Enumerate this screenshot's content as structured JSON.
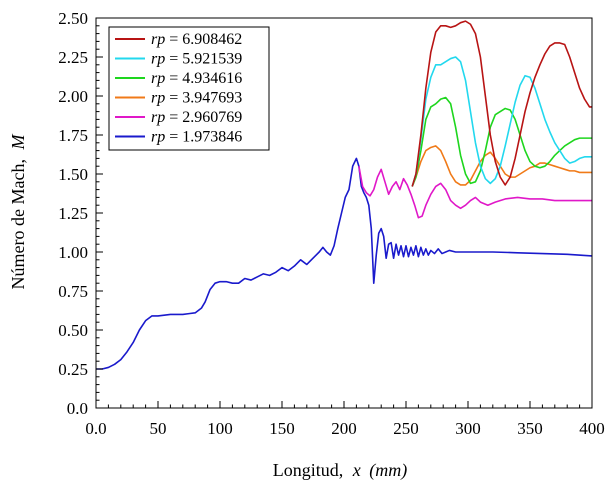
{
  "chart_data": {
    "type": "line",
    "title": "",
    "xlabel_prefix": "Longitud,",
    "xlabel_var": "x",
    "xlabel_unit": "(mm)",
    "ylabel_prefix": "Número de Mach,",
    "ylabel_var": "M",
    "xlim": [
      0,
      400
    ],
    "ylim": [
      0,
      2.5
    ],
    "xticks": [
      "0.0",
      "50",
      "100",
      "150",
      "200",
      "250",
      "300",
      "350",
      "400"
    ],
    "yticks": [
      "0.0",
      "0.25",
      "0.50",
      "0.75",
      "1.00",
      "1.25",
      "1.50",
      "1.75",
      "2.00",
      "2.25",
      "2.50"
    ],
    "grid": false,
    "legend_position": "top-left",
    "legend_var": "rp",
    "legend_eq": "=",
    "series": [
      {
        "name": "6.908462",
        "color": "#b81414",
        "x": [
          255,
          258,
          262,
          266,
          270,
          274,
          278,
          282,
          286,
          290,
          294,
          298,
          302,
          306,
          310,
          314,
          318,
          322,
          326,
          330,
          334,
          338,
          342,
          346,
          350,
          354,
          358,
          362,
          366,
          370,
          374,
          378,
          382,
          386,
          390,
          394,
          398,
          400
        ],
        "y": [
          1.42,
          1.5,
          1.75,
          2.05,
          2.28,
          2.41,
          2.45,
          2.45,
          2.44,
          2.45,
          2.47,
          2.48,
          2.46,
          2.4,
          2.25,
          2.0,
          1.75,
          1.58,
          1.48,
          1.43,
          1.48,
          1.6,
          1.75,
          1.9,
          2.02,
          2.12,
          2.2,
          2.27,
          2.32,
          2.34,
          2.34,
          2.33,
          2.25,
          2.15,
          2.05,
          1.98,
          1.93,
          1.93
        ]
      },
      {
        "name": "5.921539",
        "color": "#22d8ee",
        "x": [
          255,
          258,
          262,
          266,
          270,
          274,
          278,
          282,
          286,
          290,
          294,
          298,
          302,
          306,
          310,
          314,
          318,
          322,
          326,
          330,
          334,
          338,
          342,
          346,
          350,
          354,
          358,
          362,
          366,
          370,
          374,
          378,
          382,
          386,
          390,
          394,
          398,
          400
        ],
        "y": [
          1.42,
          1.5,
          1.72,
          1.98,
          2.12,
          2.2,
          2.2,
          2.22,
          2.24,
          2.25,
          2.22,
          2.1,
          1.9,
          1.7,
          1.55,
          1.47,
          1.44,
          1.47,
          1.55,
          1.68,
          1.82,
          1.96,
          2.07,
          2.13,
          2.12,
          2.05,
          1.95,
          1.85,
          1.77,
          1.7,
          1.65,
          1.6,
          1.57,
          1.58,
          1.6,
          1.61,
          1.61,
          1.61
        ]
      },
      {
        "name": "4.934616",
        "color": "#1ed61e",
        "x": [
          255,
          258,
          262,
          266,
          270,
          274,
          278,
          282,
          286,
          290,
          294,
          298,
          302,
          306,
          310,
          314,
          318,
          322,
          326,
          330,
          334,
          338,
          342,
          346,
          350,
          354,
          358,
          362,
          366,
          370,
          374,
          378,
          382,
          386,
          390,
          394,
          398,
          400
        ],
        "y": [
          1.42,
          1.48,
          1.65,
          1.85,
          1.93,
          1.95,
          1.98,
          1.99,
          1.95,
          1.8,
          1.62,
          1.5,
          1.44,
          1.45,
          1.52,
          1.65,
          1.8,
          1.88,
          1.9,
          1.92,
          1.91,
          1.85,
          1.75,
          1.65,
          1.58,
          1.55,
          1.54,
          1.55,
          1.58,
          1.62,
          1.65,
          1.68,
          1.7,
          1.72,
          1.73,
          1.73,
          1.73,
          1.73
        ]
      },
      {
        "name": "3.947693",
        "color": "#f07a18",
        "x": [
          255,
          258,
          262,
          266,
          270,
          274,
          278,
          282,
          286,
          290,
          294,
          298,
          302,
          306,
          310,
          314,
          318,
          322,
          326,
          330,
          334,
          338,
          342,
          346,
          350,
          354,
          358,
          362,
          366,
          370,
          374,
          378,
          382,
          386,
          390,
          394,
          398,
          400
        ],
        "y": [
          1.42,
          1.48,
          1.58,
          1.65,
          1.67,
          1.68,
          1.65,
          1.58,
          1.5,
          1.45,
          1.43,
          1.43,
          1.46,
          1.52,
          1.58,
          1.62,
          1.64,
          1.6,
          1.55,
          1.5,
          1.48,
          1.48,
          1.5,
          1.52,
          1.54,
          1.55,
          1.57,
          1.57,
          1.56,
          1.55,
          1.54,
          1.53,
          1.52,
          1.52,
          1.51,
          1.51,
          1.51,
          1.51
        ]
      },
      {
        "name": "2.960769",
        "color": "#e018c8",
        "x": [
          212,
          215,
          218,
          221,
          224,
          227,
          230,
          233,
          236,
          239,
          242,
          245,
          248,
          251,
          254,
          257,
          260,
          263,
          266,
          270,
          274,
          278,
          282,
          286,
          290,
          294,
          298,
          302,
          306,
          310,
          316,
          322,
          330,
          340,
          350,
          360,
          370,
          380,
          390,
          400
        ],
        "y": [
          1.55,
          1.42,
          1.38,
          1.36,
          1.4,
          1.48,
          1.53,
          1.45,
          1.37,
          1.42,
          1.45,
          1.4,
          1.47,
          1.43,
          1.37,
          1.3,
          1.22,
          1.23,
          1.3,
          1.37,
          1.42,
          1.44,
          1.4,
          1.33,
          1.3,
          1.28,
          1.3,
          1.33,
          1.35,
          1.32,
          1.3,
          1.32,
          1.34,
          1.35,
          1.34,
          1.34,
          1.33,
          1.33,
          1.33,
          1.33
        ]
      },
      {
        "name": "1.973846",
        "color": "#1a1acc",
        "x": [
          0,
          5,
          10,
          15,
          20,
          25,
          30,
          35,
          40,
          45,
          50,
          55,
          60,
          65,
          70,
          75,
          80,
          85,
          88,
          92,
          96,
          100,
          105,
          110,
          115,
          120,
          125,
          130,
          135,
          140,
          145,
          150,
          155,
          160,
          165,
          170,
          175,
          180,
          183,
          186,
          189,
          192,
          195,
          198,
          201,
          204,
          207,
          210,
          212,
          214,
          216,
          218,
          220,
          222,
          224,
          226,
          228,
          230,
          232,
          234,
          236,
          238,
          240,
          242,
          244,
          246,
          248,
          250,
          252,
          254,
          256,
          258,
          260,
          262,
          264,
          266,
          268,
          270,
          273,
          276,
          279,
          282,
          285,
          290,
          295,
          300,
          310,
          320,
          340,
          360,
          380,
          400
        ],
        "y": [
          0.25,
          0.25,
          0.26,
          0.28,
          0.31,
          0.36,
          0.42,
          0.5,
          0.56,
          0.59,
          0.59,
          0.595,
          0.6,
          0.6,
          0.6,
          0.605,
          0.61,
          0.64,
          0.68,
          0.76,
          0.8,
          0.81,
          0.81,
          0.8,
          0.8,
          0.83,
          0.82,
          0.84,
          0.86,
          0.85,
          0.87,
          0.9,
          0.88,
          0.91,
          0.95,
          0.92,
          0.96,
          1.0,
          1.03,
          1.0,
          0.98,
          1.04,
          1.15,
          1.25,
          1.35,
          1.4,
          1.55,
          1.6,
          1.55,
          1.42,
          1.38,
          1.35,
          1.3,
          1.15,
          0.8,
          0.98,
          1.12,
          1.15,
          1.1,
          0.96,
          1.05,
          1.06,
          0.96,
          1.05,
          0.98,
          1.04,
          0.97,
          1.04,
          0.97,
          1.03,
          0.98,
          1.04,
          0.97,
          1.03,
          0.98,
          1.02,
          0.98,
          1.01,
          0.99,
          1.02,
          0.99,
          1.0,
          1.01,
          1.0,
          1.0,
          1.0,
          1.0,
          1.0,
          0.995,
          0.99,
          0.985,
          0.975
        ]
      }
    ]
  }
}
